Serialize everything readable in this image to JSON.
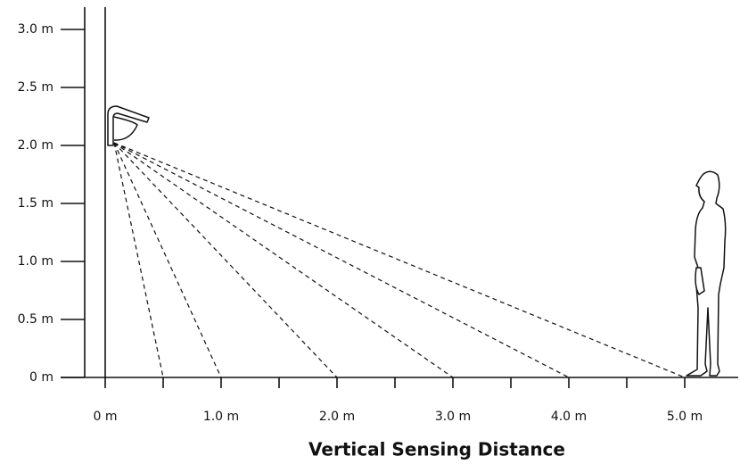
{
  "y_axis": {
    "labels": [
      "0 m",
      "0.5 m",
      "1.0 m",
      "1.5 m",
      "2.0 m",
      "2.5 m",
      "3.0 m"
    ]
  },
  "x_axis": {
    "labels": [
      "0 m",
      "1.0 m",
      "2.0 m",
      "3.0 m",
      "4.0 m",
      "5.0 m"
    ]
  },
  "title": "Vertical Sensing Distance"
}
